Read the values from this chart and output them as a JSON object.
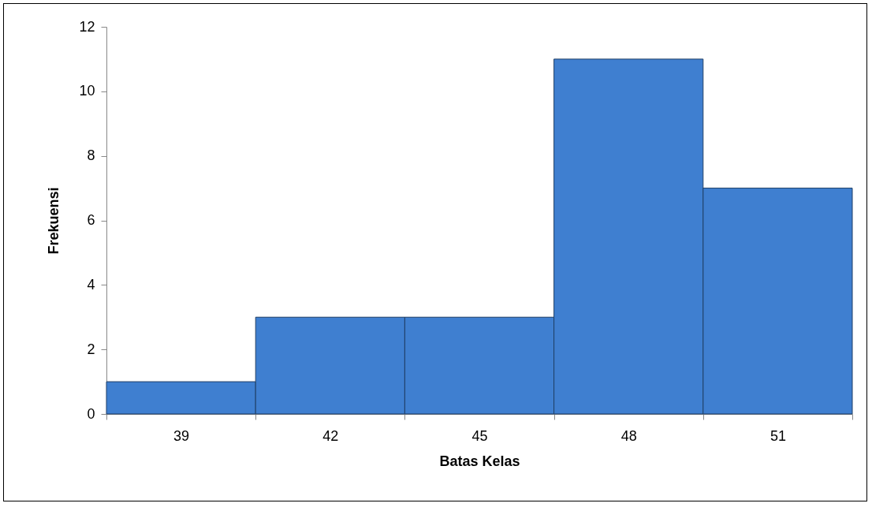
{
  "chart_data": {
    "type": "bar",
    "xlabel": "Batas Kelas",
    "ylabel": "Frekuensi",
    "categories": [
      "39",
      "42",
      "45",
      "48",
      "51"
    ],
    "values": [
      1,
      3,
      3,
      11,
      7
    ],
    "color": "#3f7fd0",
    "ylim": [
      0,
      12
    ],
    "yticks": [
      0,
      2,
      4,
      6,
      8,
      10,
      12
    ],
    "grid": false
  }
}
